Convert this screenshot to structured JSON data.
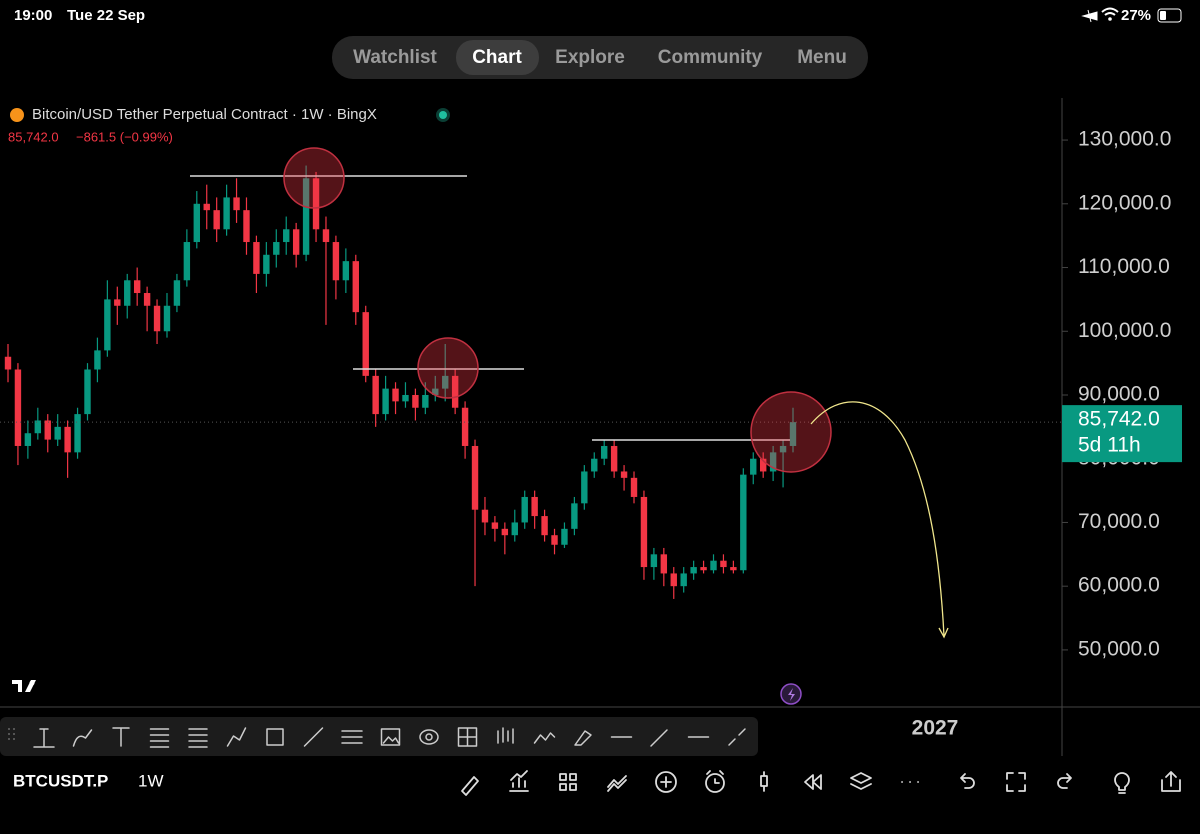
{
  "status_bar": {
    "time": "19:00",
    "date": "Tue 22 Sep",
    "battery": "27%"
  },
  "tabs": [
    "Watchlist",
    "Chart",
    "Explore",
    "Community",
    "Menu"
  ],
  "chart_data": {
    "type": "candlestick",
    "title": "Bitcoin/USD Tether Perpetual Contract · 1W · BingX",
    "last_price": "85,742.0",
    "change": "−861.5 (−0.99%)",
    "up_color": "#089981",
    "down_color": "#f23645",
    "ylim": [
      41200,
      136600
    ],
    "yticks": [
      {
        "value": 130000,
        "label": "130,000.0"
      },
      {
        "value": 120000,
        "label": "120,000.0"
      },
      {
        "value": 110000,
        "label": "110,000.0"
      },
      {
        "value": 100000,
        "label": "100,000.0"
      },
      {
        "value": 90000,
        "label": "90,000.0"
      },
      {
        "value": 80000,
        "label": "80,000.0"
      },
      {
        "value": 70000,
        "label": "70,000.0"
      },
      {
        "value": 60000,
        "label": "60,000.0"
      },
      {
        "value": 50000,
        "label": "50,000.0"
      }
    ],
    "last_label": {
      "value": 85742,
      "label": "85,742.0"
    },
    "countdown": "5d 11h",
    "x_label": "2027",
    "ohlc": [
      [
        96000,
        98000,
        92000,
        94000
      ],
      [
        94000,
        95000,
        79000,
        82000
      ],
      [
        82000,
        86000,
        80000,
        84000
      ],
      [
        84000,
        88000,
        83000,
        86000
      ],
      [
        86000,
        87000,
        81000,
        83000
      ],
      [
        83000,
        87000,
        82000,
        85000
      ],
      [
        85000,
        86000,
        77000,
        81000
      ],
      [
        81000,
        88000,
        80000,
        87000
      ],
      [
        87000,
        95000,
        86000,
        94000
      ],
      [
        94000,
        99000,
        92000,
        97000
      ],
      [
        97000,
        108000,
        96000,
        105000
      ],
      [
        105000,
        107000,
        101000,
        104000
      ],
      [
        104000,
        109000,
        102000,
        108000
      ],
      [
        108000,
        110000,
        104000,
        106000
      ],
      [
        106000,
        107000,
        100000,
        104000
      ],
      [
        104000,
        105000,
        98000,
        100000
      ],
      [
        100000,
        106000,
        99000,
        104000
      ],
      [
        104000,
        109000,
        103000,
        108000
      ],
      [
        108000,
        116000,
        107000,
        114000
      ],
      [
        114000,
        122000,
        113000,
        120000
      ],
      [
        120000,
        123000,
        116000,
        119000
      ],
      [
        119000,
        121000,
        114000,
        116000
      ],
      [
        116000,
        123000,
        115000,
        121000
      ],
      [
        121000,
        124000,
        117000,
        119000
      ],
      [
        119000,
        121000,
        112000,
        114000
      ],
      [
        114000,
        115000,
        106000,
        109000
      ],
      [
        109000,
        114000,
        107000,
        112000
      ],
      [
        112000,
        116000,
        110000,
        114000
      ],
      [
        114000,
        118000,
        112000,
        116000
      ],
      [
        116000,
        117000,
        110000,
        112000
      ],
      [
        112000,
        126000,
        111000,
        124000
      ],
      [
        124000,
        125000,
        114000,
        116000
      ],
      [
        116000,
        118000,
        101000,
        114000
      ],
      [
        114000,
        115000,
        105000,
        108000
      ],
      [
        108000,
        113000,
        106000,
        111000
      ],
      [
        111000,
        112000,
        101000,
        103000
      ],
      [
        103000,
        104000,
        92000,
        93000
      ],
      [
        93000,
        94000,
        85000,
        87000
      ],
      [
        87000,
        93000,
        86000,
        91000
      ],
      [
        91000,
        92000,
        87000,
        89000
      ],
      [
        89000,
        92000,
        88000,
        90000
      ],
      [
        90000,
        91000,
        86000,
        88000
      ],
      [
        88000,
        92000,
        87000,
        90000
      ],
      [
        90000,
        93000,
        89000,
        91000
      ],
      [
        91000,
        98000,
        89000,
        93000
      ],
      [
        93000,
        94000,
        87000,
        88000
      ],
      [
        88000,
        89000,
        80000,
        82000
      ],
      [
        82000,
        83000,
        60000,
        72000
      ],
      [
        72000,
        74000,
        68000,
        70000
      ],
      [
        70000,
        71000,
        67000,
        69000
      ],
      [
        69000,
        70000,
        65000,
        68000
      ],
      [
        68000,
        72000,
        67000,
        70000
      ],
      [
        70000,
        75000,
        69000,
        74000
      ],
      [
        74000,
        75000,
        69000,
        71000
      ],
      [
        71000,
        72000,
        67000,
        68000
      ],
      [
        68000,
        69000,
        65000,
        66500
      ],
      [
        66500,
        70000,
        66000,
        69000
      ],
      [
        69000,
        74000,
        68000,
        73000
      ],
      [
        73000,
        79000,
        72000,
        78000
      ],
      [
        78000,
        81000,
        77000,
        80000
      ],
      [
        80000,
        83000,
        79000,
        82000
      ],
      [
        82000,
        83000,
        77000,
        78000
      ],
      [
        78000,
        79000,
        75000,
        77000
      ],
      [
        77000,
        78000,
        73000,
        74000
      ],
      [
        74000,
        75000,
        61000,
        63000
      ],
      [
        63000,
        66000,
        61000,
        65000
      ],
      [
        65000,
        66000,
        60000,
        62000
      ],
      [
        62000,
        63000,
        58000,
        60000
      ],
      [
        60000,
        63000,
        59000,
        62000
      ],
      [
        62000,
        64000,
        61000,
        63000
      ],
      [
        63000,
        64000,
        62000,
        62500
      ],
      [
        62500,
        65000,
        62000,
        64000
      ],
      [
        64000,
        65000,
        62000,
        63000
      ],
      [
        63000,
        64000,
        62000,
        62500
      ],
      [
        62500,
        78500,
        62000,
        77500
      ],
      [
        77500,
        81000,
        76000,
        80000
      ],
      [
        80000,
        81000,
        77000,
        78000
      ],
      [
        78000,
        82000,
        76500,
        81000
      ],
      [
        81000,
        83000,
        75500,
        82000
      ],
      [
        82000,
        88000,
        81000,
        85742
      ]
    ]
  },
  "symbol_bar": {
    "symbol": "BTCUSDT.P",
    "interval": "1W"
  }
}
